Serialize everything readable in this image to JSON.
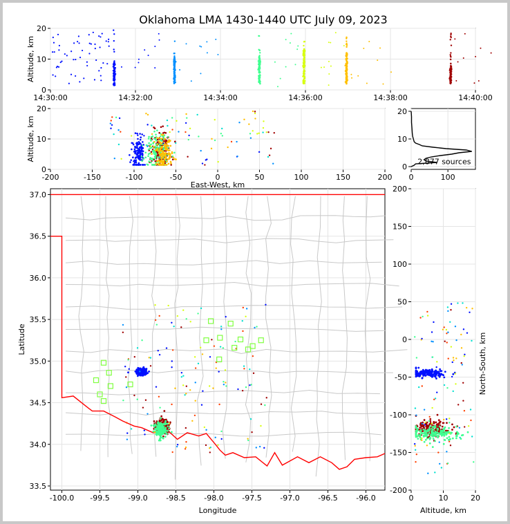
{
  "title": "Oklahoma LMA 1430-1440 UTC July 09, 2023",
  "colors": {
    "state_border": "#ff0000",
    "county": "#c8c8c8",
    "station": "#80ff40",
    "series_palette": [
      "#0010ff",
      "#0090ff",
      "#00e0d0",
      "#40ff90",
      "#d8ff10",
      "#ffc000",
      "#ff4000",
      "#a00000"
    ]
  },
  "chart_data": [
    {
      "id": "time_altitude",
      "type": "scatter",
      "ylabel": "Altitude, km",
      "xlim": [
        "14:30:00",
        "14:40:00"
      ],
      "ylim": [
        0,
        20
      ],
      "xticks": [
        "14:30:00",
        "14:32:00",
        "14:34:00",
        "14:36:00",
        "14:38:00",
        "14:40:00"
      ],
      "yticks": [
        0,
        10,
        20
      ],
      "bursts": [
        {
          "time": "14:31:30",
          "alt_min": 1.5,
          "alt_max": 19.5,
          "dense_min": 1.5,
          "dense_max": 9,
          "color": "#0010ff"
        },
        {
          "time": "14:32:55",
          "alt_min": 2,
          "alt_max": 17.5,
          "dense_min": 2,
          "dense_max": 11,
          "color": "#0090ff"
        },
        {
          "time": "14:34:55",
          "alt_min": 2,
          "alt_max": 18,
          "dense_min": 2,
          "dense_max": 11,
          "color": "#40ff90"
        },
        {
          "time": "14:35:58",
          "alt_min": 2,
          "alt_max": 18,
          "dense_min": 2,
          "dense_max": 13,
          "color": "#d8ff10"
        },
        {
          "time": "14:36:58",
          "alt_min": 2,
          "alt_max": 17.5,
          "dense_min": 2,
          "dense_max": 12,
          "color": "#ffc000"
        },
        {
          "time": "14:39:25",
          "alt_min": 2,
          "alt_max": 19.5,
          "dense_min": 2,
          "dense_max": 8,
          "color": "#a00000"
        }
      ]
    },
    {
      "id": "east_west_altitude",
      "type": "scatter",
      "xlabel": "East-West, km",
      "ylabel": "Altitude, km",
      "xlim": [
        -200,
        200
      ],
      "ylim": [
        0,
        20
      ],
      "xticks": [
        -200,
        -150,
        -100,
        -50,
        0,
        50,
        100,
        150,
        200
      ],
      "yticks": [
        0,
        10,
        20
      ],
      "clusters": [
        {
          "x": -95,
          "y": 5,
          "sx": 4,
          "sy": 3,
          "color": "#0010ff"
        },
        {
          "x": -68,
          "y": 6,
          "sx": 6,
          "sy": 3,
          "color": "#a00000"
        },
        {
          "x": -72,
          "y": 6,
          "sx": 7,
          "sy": 3,
          "color": "#40ff90"
        },
        {
          "x": -65,
          "y": 5,
          "sx": 5,
          "sy": 3,
          "color": "#ffc000"
        }
      ]
    },
    {
      "id": "altitude_histogram",
      "type": "line",
      "xlim": [
        0,
        175
      ],
      "ylim": [
        0,
        20
      ],
      "xticks": [
        0,
        100
      ],
      "yticks": [
        0,
        10,
        20
      ],
      "annotation": "2,877 sources",
      "profile": [
        [
          0,
          0
        ],
        [
          0.5,
          8
        ],
        [
          1,
          12
        ],
        [
          1.5,
          70
        ],
        [
          2,
          40
        ],
        [
          2.5,
          35
        ],
        [
          3,
          40
        ],
        [
          3.5,
          55
        ],
        [
          4,
          80
        ],
        [
          4.5,
          110
        ],
        [
          5,
          130
        ],
        [
          5.5,
          165
        ],
        [
          6,
          150
        ],
        [
          6.5,
          95
        ],
        [
          7,
          60
        ],
        [
          7.5,
          30
        ],
        [
          8,
          22
        ],
        [
          8.5,
          12
        ],
        [
          9,
          8
        ],
        [
          10,
          6
        ],
        [
          11,
          4
        ],
        [
          12,
          3
        ],
        [
          14,
          2
        ],
        [
          16,
          1
        ],
        [
          18,
          1
        ],
        [
          20,
          0
        ]
      ]
    },
    {
      "id": "plan_view",
      "type": "scatter",
      "xlabel": "Longitude",
      "ylabel": "Latitude",
      "xlim": [
        -100.15,
        -95.75
      ],
      "ylim": [
        33.45,
        37.07
      ],
      "xticks": [
        -100.0,
        -99.5,
        -99.0,
        -98.5,
        -98.0,
        -97.5,
        -97.0,
        -96.5,
        -96.0
      ],
      "yticks": [
        33.5,
        34.0,
        34.5,
        35.0,
        35.5,
        36.0,
        36.5,
        37.0
      ],
      "stations": [
        [
          -99.45,
          34.98
        ],
        [
          -99.38,
          34.86
        ],
        [
          -99.55,
          34.77
        ],
        [
          -99.36,
          34.7
        ],
        [
          -99.5,
          34.6
        ],
        [
          -99.45,
          34.52
        ],
        [
          -99.1,
          34.72
        ],
        [
          -98.04,
          35.48
        ],
        [
          -98.1,
          35.25
        ],
        [
          -97.92,
          35.28
        ],
        [
          -97.93,
          35.02
        ],
        [
          -97.78,
          35.45
        ],
        [
          -97.73,
          35.16
        ],
        [
          -97.65,
          35.26
        ],
        [
          -97.55,
          35.14
        ],
        [
          -97.49,
          35.18
        ],
        [
          -97.38,
          35.25
        ]
      ],
      "clusters": [
        {
          "lon": -98.68,
          "lat": 34.22,
          "sx": 0.05,
          "sy": 0.05,
          "color": "#a00000"
        },
        {
          "lon": -98.7,
          "lat": 34.18,
          "sx": 0.04,
          "sy": 0.05,
          "color": "#40ff90"
        },
        {
          "lon": -98.95,
          "lat": 34.87,
          "sx": 0.04,
          "sy": 0.02,
          "color": "#0010ff"
        }
      ]
    },
    {
      "id": "altitude_north_south",
      "type": "scatter",
      "xlabel": "Altitude, km",
      "ylabel": "North-South, km",
      "xlim": [
        0,
        20
      ],
      "ylim": [
        -200,
        200
      ],
      "xticks": [
        0,
        10,
        20
      ],
      "yticks": [
        -200,
        -150,
        -100,
        -50,
        0,
        50,
        100,
        150,
        200
      ],
      "clusters": [
        {
          "x": 5,
          "y": -45,
          "sx": 3,
          "sy": 2.5,
          "color": "#0010ff"
        },
        {
          "x": 6,
          "y": -118,
          "sx": 3,
          "sy": 5,
          "color": "#a00000"
        },
        {
          "x": 7,
          "y": -125,
          "sx": 4,
          "sy": 5,
          "color": "#40ff90"
        }
      ]
    }
  ]
}
